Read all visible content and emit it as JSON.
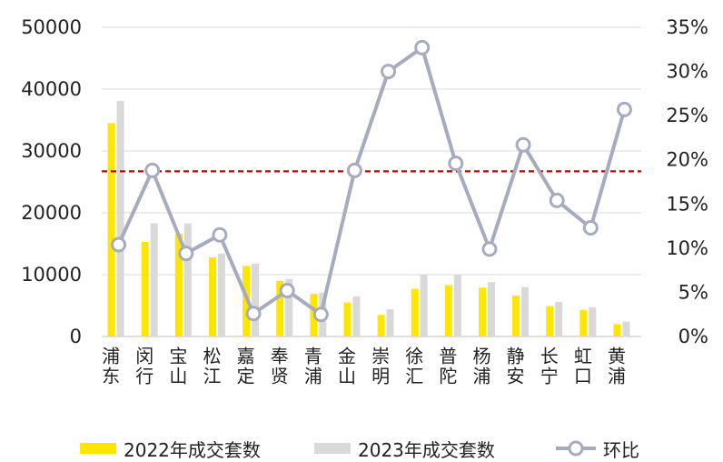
{
  "chart_data": {
    "type": "bar",
    "categories": [
      "浦东",
      "闵行",
      "宝山",
      "松江",
      "嘉定",
      "奉贤",
      "青浦",
      "金山",
      "崇明",
      "徐汇",
      "普陀",
      "杨浦",
      "静安",
      "长宁",
      "虹口",
      "黄浦"
    ],
    "series": [
      {
        "name": "2022年成交套数",
        "type": "bar",
        "axis": "left",
        "color": "#FFE600",
        "values": [
          34500,
          15300,
          16600,
          12800,
          11400,
          9000,
          6900,
          5500,
          3500,
          7700,
          8300,
          7900,
          6600,
          4900,
          4300,
          2000
        ]
      },
      {
        "name": "2023年成交套数",
        "type": "bar",
        "axis": "left",
        "color": "#D9D9D9",
        "values": [
          38100,
          18300,
          18300,
          13400,
          11800,
          9300,
          7100,
          6500,
          4400,
          10000,
          10000,
          8800,
          8000,
          5600,
          4700,
          2400
        ]
      },
      {
        "name": "环比",
        "type": "line",
        "axis": "right",
        "color": "#A7ABBE",
        "values": [
          10.4,
          18.8,
          9.4,
          11.5,
          2.6,
          5.2,
          2.5,
          18.8,
          30.0,
          32.7,
          19.6,
          9.9,
          21.7,
          15.4,
          12.3,
          25.7
        ]
      }
    ],
    "reference_line": {
      "axis": "right",
      "value": 18.7,
      "color": "#C00000",
      "style": "dashed"
    },
    "y_left": {
      "lim": [
        0,
        50000
      ],
      "ticks": [
        "0",
        "10000",
        "20000",
        "30000",
        "40000",
        "50000"
      ]
    },
    "y_right": {
      "lim": [
        0,
        35
      ],
      "ticks": [
        "0%",
        "5%",
        "10%",
        "15%",
        "20%",
        "25%",
        "30%",
        "35%"
      ]
    },
    "grid": true,
    "legend_position": "bottom"
  }
}
